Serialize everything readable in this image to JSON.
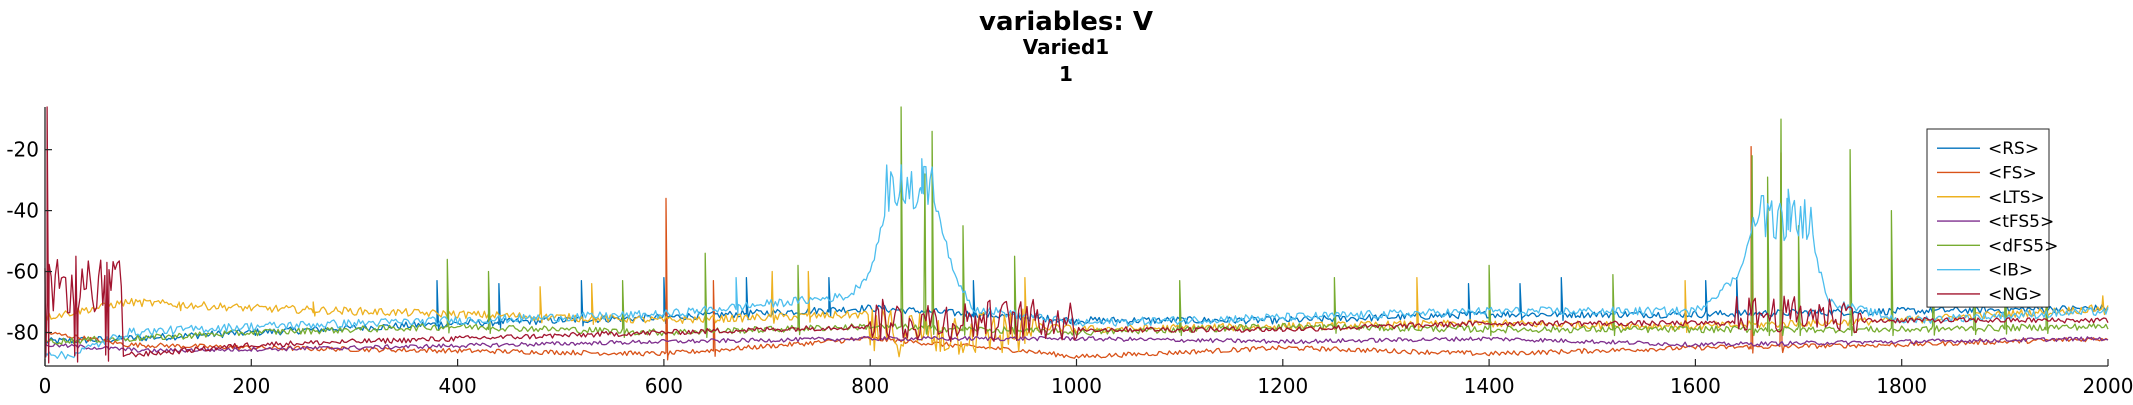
{
  "chart_data": {
    "type": "line",
    "title": "variables: V",
    "subtitle_lines": [
      "Varied1",
      "1"
    ],
    "xlabel": "",
    "ylabel": "",
    "xlim": [
      0,
      2000
    ],
    "ylim": [
      -91,
      -6
    ],
    "xticks": [
      0,
      200,
      400,
      600,
      800,
      1000,
      1200,
      1400,
      1600,
      1800,
      2000
    ],
    "yticks": [
      -80,
      -60,
      -40,
      -20
    ],
    "ytick_labels": [
      "-80",
      "-60",
      "-40",
      "-20"
    ],
    "grid": false,
    "legend_position": "top-right",
    "series": [
      {
        "name": "<RS>",
        "color": "#0072BD",
        "baseline": [
          [
            0,
            -83
          ],
          [
            80,
            -82
          ],
          [
            200,
            -80
          ],
          [
            400,
            -77
          ],
          [
            600,
            -75
          ],
          [
            800,
            -72
          ],
          [
            1000,
            -76
          ],
          [
            1200,
            -76
          ],
          [
            1400,
            -74
          ],
          [
            1600,
            -74
          ],
          [
            1800,
            -73
          ],
          [
            2000,
            -72
          ]
        ],
        "noise": 1.2,
        "spikes": [
          [
            380,
            -63
          ],
          [
            440,
            -64
          ],
          [
            520,
            -63
          ],
          [
            600,
            -62
          ],
          [
            680,
            -62
          ],
          [
            760,
            -62
          ],
          [
            900,
            -63
          ],
          [
            1380,
            -64
          ],
          [
            1430,
            -64
          ],
          [
            1470,
            -62
          ],
          [
            1610,
            -63
          ],
          [
            1640,
            -62
          ]
        ]
      },
      {
        "name": "<FS>",
        "color": "#D95319",
        "baseline": [
          [
            0,
            -80
          ],
          [
            80,
            -84
          ],
          [
            200,
            -85
          ],
          [
            400,
            -86
          ],
          [
            600,
            -87
          ],
          [
            800,
            -82
          ],
          [
            950,
            -86
          ],
          [
            1000,
            -88
          ],
          [
            1200,
            -85
          ],
          [
            1400,
            -87
          ],
          [
            1600,
            -85
          ],
          [
            1800,
            -84
          ],
          [
            2000,
            -82
          ]
        ],
        "noise": 0.8,
        "spikes": [
          [
            602,
            -36
          ],
          [
            648,
            -63
          ],
          [
            1654,
            -19
          ],
          [
            1683,
            -21
          ]
        ]
      },
      {
        "name": "<LTS>",
        "color": "#EDB120",
        "baseline": [
          [
            0,
            -75
          ],
          [
            80,
            -70
          ],
          [
            200,
            -72
          ],
          [
            400,
            -74
          ],
          [
            600,
            -76
          ],
          [
            800,
            -74
          ],
          [
            1000,
            -79
          ],
          [
            1200,
            -78
          ],
          [
            1400,
            -77
          ],
          [
            1600,
            -78
          ],
          [
            1800,
            -76
          ],
          [
            2000,
            -72
          ]
        ],
        "noise": 1.3,
        "spikes": [
          [
            130,
            -70
          ],
          [
            260,
            -70
          ],
          [
            480,
            -65
          ],
          [
            530,
            -64
          ],
          [
            705,
            -60
          ],
          [
            740,
            -60
          ],
          [
            950,
            -62
          ],
          [
            1330,
            -62
          ],
          [
            1590,
            -63
          ],
          [
            1940,
            -60
          ],
          [
            1995,
            -68
          ]
        ]
      },
      {
        "name": "<tFS5>",
        "color": "#7E2F8E",
        "baseline": [
          [
            0,
            -84
          ],
          [
            100,
            -86
          ],
          [
            300,
            -85
          ],
          [
            600,
            -83
          ],
          [
            800,
            -82
          ],
          [
            1000,
            -82
          ],
          [
            1200,
            -83
          ],
          [
            1400,
            -82
          ],
          [
            1600,
            -84
          ],
          [
            1800,
            -83
          ],
          [
            2000,
            -82
          ]
        ],
        "noise": 0.7,
        "spikes": []
      },
      {
        "name": "<dFS5>",
        "color": "#77AC30",
        "baseline": [
          [
            0,
            -83
          ],
          [
            80,
            -82
          ],
          [
            200,
            -80
          ],
          [
            400,
            -78
          ],
          [
            600,
            -80
          ],
          [
            800,
            -78
          ],
          [
            1000,
            -80
          ],
          [
            1200,
            -78
          ],
          [
            1400,
            -79
          ],
          [
            1600,
            -79
          ],
          [
            1800,
            -79
          ],
          [
            2000,
            -78
          ]
        ],
        "noise": 1.1,
        "spikes": [
          [
            390,
            -56
          ],
          [
            430,
            -60
          ],
          [
            560,
            -63
          ],
          [
            640,
            -54
          ],
          [
            730,
            -58
          ],
          [
            830,
            -5
          ],
          [
            853,
            -28
          ],
          [
            860,
            -14
          ],
          [
            890,
            -45
          ],
          [
            940,
            -55
          ],
          [
            1100,
            -63
          ],
          [
            1250,
            -62
          ],
          [
            1400,
            -58
          ],
          [
            1520,
            -61
          ],
          [
            1655,
            -22
          ],
          [
            1670,
            -29
          ],
          [
            1683,
            -10
          ],
          [
            1700,
            -45
          ],
          [
            1750,
            -20
          ],
          [
            1790,
            -40
          ],
          [
            1830,
            -28
          ],
          [
            1870,
            -25
          ],
          [
            1900,
            -38
          ],
          [
            1940,
            -58
          ]
        ]
      },
      {
        "name": "<IB>",
        "color": "#4DBEEE",
        "baseline": [
          [
            0,
            -86
          ],
          [
            20,
            -88
          ],
          [
            80,
            -80
          ],
          [
            200,
            -78
          ],
          [
            400,
            -76
          ],
          [
            600,
            -74
          ],
          [
            780,
            -68
          ],
          [
            800,
            -60
          ],
          [
            820,
            -34
          ],
          [
            860,
            -32
          ],
          [
            880,
            -60
          ],
          [
            900,
            -72
          ],
          [
            1000,
            -77
          ],
          [
            1200,
            -75
          ],
          [
            1400,
            -73
          ],
          [
            1600,
            -73
          ],
          [
            1640,
            -62
          ],
          [
            1660,
            -42
          ],
          [
            1690,
            -36
          ],
          [
            1710,
            -48
          ],
          [
            1730,
            -70
          ],
          [
            1800,
            -76
          ],
          [
            2000,
            -73
          ]
        ],
        "noise": 1.4,
        "spikes": [
          [
            670,
            -62
          ],
          [
            830,
            -25
          ],
          [
            850,
            -23
          ],
          [
            1690,
            -33
          ]
        ]
      },
      {
        "name": "<NG>",
        "color": "#A2142F",
        "baseline": [
          [
            0,
            -88
          ],
          [
            100,
            -87
          ],
          [
            200,
            -84
          ],
          [
            400,
            -82
          ],
          [
            600,
            -80
          ],
          [
            800,
            -78
          ],
          [
            1000,
            -79
          ],
          [
            1200,
            -79
          ],
          [
            1400,
            -77
          ],
          [
            1600,
            -77
          ],
          [
            1800,
            -76
          ],
          [
            2000,
            -76
          ]
        ],
        "noise": 0.9,
        "spikes": [
          [
            2,
            -1
          ],
          [
            30,
            -55
          ],
          [
            60,
            -57
          ]
        ]
      }
    ],
    "bursts": [
      {
        "series": "<NG>",
        "x_range": [
          0,
          75
        ],
        "level": -65,
        "amplitude": 9
      },
      {
        "series": "<NG>",
        "x_range": [
          800,
          1000
        ],
        "level": -76,
        "amplitude": 7
      },
      {
        "series": "<NG>",
        "x_range": [
          1640,
          1760
        ],
        "level": -74,
        "amplitude": 6
      },
      {
        "series": "<IB>",
        "x_range": [
          815,
          865
        ],
        "level": -33,
        "amplitude": 8
      },
      {
        "series": "<IB>",
        "x_range": [
          1655,
          1715
        ],
        "level": -42,
        "amplitude": 8
      },
      {
        "series": "<LTS>",
        "x_range": [
          800,
          960
        ],
        "level": -80,
        "amplitude": 8
      }
    ]
  }
}
